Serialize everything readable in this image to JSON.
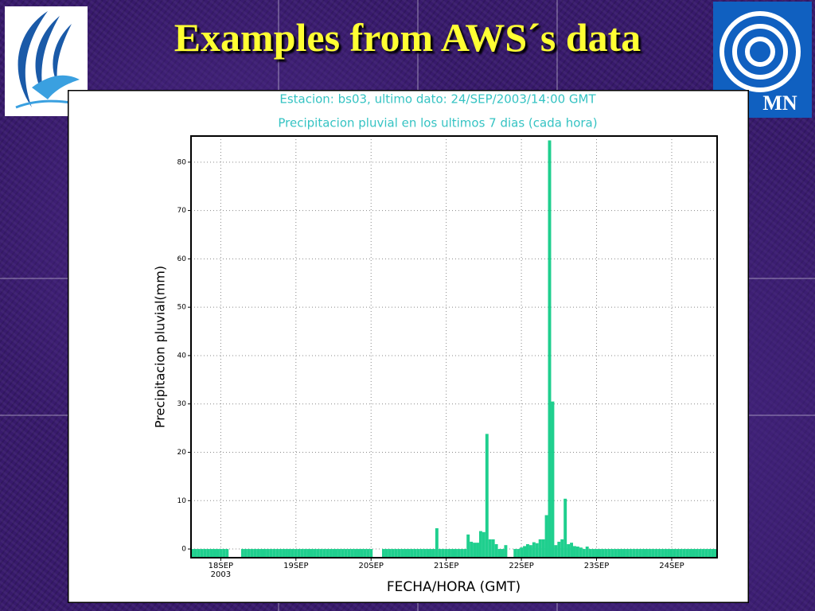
{
  "slide": {
    "title": "Examples from AWS´s data"
  },
  "chart_data": {
    "type": "bar",
    "title": "Estacion: bs03, ultimo dato: 24/SEP/2003/14:00 GMT",
    "subtitle": "Precipitacion pluvial en los ultimos 7 dias (cada hora)",
    "x_label": "FECHA/HORA (GMT)",
    "y_label": "Precipitacion pluvial(mm)",
    "x_year": "2003",
    "color": "#1fcf8e",
    "grid": true,
    "xlim": [
      -9.5,
      158.5
    ],
    "ylim": [
      -1.8,
      85.4
    ],
    "xticks": [
      {
        "value": 0,
        "label": "18SEP"
      },
      {
        "value": 24,
        "label": "19SEP"
      },
      {
        "value": 48,
        "label": "20SEP"
      },
      {
        "value": 72,
        "label": "21SEP"
      },
      {
        "value": 96,
        "label": "22SEP"
      },
      {
        "value": 120,
        "label": "23SEP"
      },
      {
        "value": 144,
        "label": "24SEP"
      }
    ],
    "yticks": [
      0,
      10,
      20,
      30,
      40,
      50,
      60,
      70,
      80
    ],
    "x": [
      -9,
      -8,
      -7,
      -6,
      -5,
      -4,
      -3,
      -2,
      -1,
      0,
      1,
      2,
      3,
      4,
      5,
      6,
      7,
      8,
      9,
      10,
      11,
      12,
      13,
      14,
      15,
      16,
      17,
      18,
      19,
      20,
      21,
      22,
      23,
      24,
      25,
      26,
      27,
      28,
      29,
      30,
      31,
      32,
      33,
      34,
      35,
      36,
      37,
      38,
      39,
      40,
      41,
      42,
      43,
      44,
      45,
      46,
      47,
      48,
      49,
      50,
      51,
      52,
      53,
      54,
      55,
      56,
      57,
      58,
      59,
      60,
      61,
      62,
      63,
      64,
      65,
      66,
      67,
      68,
      69,
      70,
      71,
      72,
      73,
      74,
      75,
      76,
      77,
      78,
      79,
      80,
      81,
      82,
      83,
      84,
      85,
      86,
      87,
      88,
      89,
      90,
      91,
      92,
      93,
      94,
      95,
      96,
      97,
      98,
      99,
      100,
      101,
      102,
      103,
      104,
      105,
      106,
      107,
      108,
      109,
      110,
      111,
      112,
      113,
      114,
      115,
      116,
      117,
      118,
      119,
      120,
      121,
      122,
      123,
      124,
      125,
      126,
      127,
      128,
      129,
      130,
      131,
      132,
      133,
      134,
      135,
      136,
      137,
      138,
      139,
      140,
      141,
      142,
      143,
      144,
      145,
      146,
      147,
      148,
      149,
      150,
      151,
      152,
      153,
      154,
      155,
      156,
      157,
      158
    ],
    "values": [
      0,
      0,
      0,
      0,
      0,
      0,
      0,
      0,
      0,
      0,
      0,
      0,
      null,
      null,
      null,
      null,
      0,
      0,
      0,
      0,
      0,
      0,
      0,
      0,
      0,
      0,
      0,
      0,
      0,
      0,
      0,
      0,
      0,
      0,
      0,
      0,
      0,
      0,
      0,
      0,
      0,
      0,
      0,
      0,
      0,
      0,
      0,
      0,
      0,
      0,
      0,
      0,
      0,
      0,
      0,
      0,
      0,
      0,
      null,
      null,
      null,
      0,
      0,
      0,
      0,
      0,
      0,
      0,
      0,
      0,
      0,
      0,
      0,
      0,
      0,
      0,
      0,
      0,
      4.3,
      0,
      0,
      0,
      0,
      0,
      0,
      0,
      0,
      0,
      3.0,
      1.5,
      1.3,
      1.3,
      3.7,
      3.5,
      23.8,
      2.0,
      2.0,
      1.0,
      0,
      0,
      0.8,
      null,
      null,
      0,
      0,
      0.3,
      0.6,
      1.0,
      0.8,
      1.4,
      1.2,
      2.0,
      2.0,
      7.0,
      84.5,
      30.5,
      0.8,
      1.5,
      2.0,
      10.4,
      1.0,
      1.3,
      0.6,
      0.5,
      0.3,
      0,
      0.5,
      0,
      0,
      0,
      0,
      0,
      0,
      0,
      0,
      0,
      0,
      0,
      0,
      0,
      0,
      0,
      0,
      0,
      0,
      0,
      0,
      0,
      0,
      0,
      0,
      0,
      0,
      0,
      0,
      0,
      0,
      0,
      0,
      0,
      0,
      0,
      0,
      0,
      0,
      0,
      0,
      0
    ]
  }
}
